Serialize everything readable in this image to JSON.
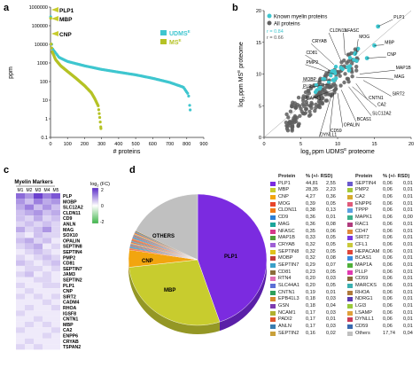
{
  "panel_labels": {
    "a": "a",
    "b": "b",
    "c": "c",
    "d": "d"
  },
  "panel_a": {
    "ylabel": "ppm",
    "xlabel": "# proteins",
    "legend": [
      "UDMS",
      "MS"
    ],
    "legend_superscript": "E",
    "y_ticks": [
      "1000000",
      "100000",
      "10000",
      "1000",
      "100",
      "10",
      "1",
      "0.1"
    ],
    "x_ticks": [
      "0",
      "100",
      "200",
      "300",
      "400",
      "500",
      "600",
      "700",
      "800",
      "900"
    ],
    "annotations": [
      "PLP1",
      "MBP",
      "CNP"
    ],
    "colors": {
      "udms": "#3ec6cf",
      "ms": "#b5c225"
    }
  },
  "panel_b": {
    "ylabel": "log",
    "ylabel_sub": "2",
    "ylabel_rest": "ppm MS",
    "ylabel_sup": "E",
    "ylabel_end": " proteome",
    "xlabel": "log",
    "xlabel_sub": "2",
    "xlabel_rest": "ppm UDMS",
    "xlabel_sup": "E",
    "xlabel_end": " proteome",
    "legend": [
      "Known myelin proteins",
      "All proteins"
    ],
    "r_labels": [
      "r =  0.84",
      "r =  0.66"
    ],
    "x_ticks": [
      "0",
      "5",
      "10",
      "15",
      "20"
    ],
    "y_ticks": [
      "0",
      "5",
      "10",
      "15",
      "20"
    ],
    "labels": [
      "PLP1",
      "MBP",
      "CNP",
      "MOG",
      "NFASC",
      "CLDN11",
      "CRYAB",
      "CD81",
      "PMP2",
      "MOBP",
      "PLP",
      "MAPK1",
      "MAP1B",
      "MAG",
      "CA2",
      "SLC12A2",
      "CNTN1",
      "SIRT2",
      "BCAS1",
      "OPALIN",
      "CD59",
      "DYNLL1"
    ]
  },
  "panel_c": {
    "title": "Myelin Markers",
    "columns": [
      "M1",
      "M2",
      "M3",
      "M4",
      "M5"
    ],
    "legend_title": "log",
    "legend_sub": "2",
    "legend_end": " (FC)",
    "legend_ticks": [
      "2",
      "0",
      "-2"
    ],
    "rows": [
      "PLP",
      "MOBP",
      "SLC12A2",
      "CLDN11",
      "CD9",
      "ANLN",
      "MAG",
      "SOX10",
      "OPALIN",
      "SEPTIN8",
      "SEPTIN4",
      "PMP2",
      "CD81",
      "SEPTIN7",
      "JAM3",
      "SEPTIN2",
      "PLP1",
      "CNP",
      "SIRT2",
      "CADM4",
      "RHOA",
      "IGSF8",
      "CNTN1",
      "MBP",
      "CA2",
      "ENPP6",
      "CRYAB",
      "TSPAN2"
    ],
    "values": [
      [
        0.7,
        0.5,
        0.9,
        0.6,
        0.8
      ],
      [
        0.5,
        0.3,
        0.6,
        0.4,
        0.5
      ],
      [
        0.4,
        0.6,
        0.3,
        0.5,
        0.3
      ],
      [
        0.3,
        0.4,
        0.5,
        0.3,
        0.4
      ],
      [
        0.3,
        0.2,
        0.4,
        0.2,
        0.3
      ],
      [
        0.2,
        0.3,
        0.2,
        0.3,
        0.2
      ],
      [
        0.4,
        0.2,
        0.3,
        0.5,
        0.2
      ],
      [
        0.2,
        0.1,
        0.3,
        0.2,
        0.2
      ],
      [
        0.3,
        0.4,
        0.2,
        0.3,
        0.1
      ],
      [
        0.2,
        0.3,
        0.4,
        0.1,
        0.2
      ],
      [
        0.1,
        0.2,
        0.3,
        0.2,
        0.1
      ],
      [
        0.2,
        0.1,
        0.2,
        0.3,
        0.2
      ],
      [
        0.3,
        0.2,
        0.1,
        0.2,
        0.3
      ],
      [
        0.1,
        0.2,
        0.2,
        0.1,
        0.2
      ],
      [
        0.2,
        0.3,
        0.1,
        0.2,
        0.1
      ],
      [
        0.1,
        0.1,
        0.2,
        0.2,
        0.1
      ],
      [
        0.2,
        0.1,
        0.1,
        0.2,
        0.2
      ],
      [
        0.1,
        0.2,
        0.1,
        0.1,
        0.1
      ],
      [
        0.2,
        0.1,
        0.2,
        0.1,
        0.2
      ],
      [
        0.1,
        0.1,
        0.1,
        0.2,
        0.1
      ],
      [
        0.1,
        0.2,
        0.1,
        0.1,
        0.2
      ],
      [
        0.2,
        0.1,
        0.1,
        0.1,
        0.1
      ],
      [
        0.1,
        0.1,
        0.2,
        0.1,
        0.1
      ],
      [
        0.1,
        0.2,
        0.1,
        0.2,
        0.1
      ],
      [
        0.2,
        0.1,
        0.1,
        0.1,
        0.2
      ],
      [
        0.1,
        0.1,
        0.1,
        0.2,
        0.1
      ],
      [
        0.1,
        0.2,
        0.1,
        0.1,
        0.1
      ],
      [
        0.2,
        0.1,
        0.2,
        0.1,
        0.1
      ]
    ]
  },
  "panel_d": {
    "pie_labels": [
      "OTHERS",
      "PLP1",
      "MBP",
      "CNP"
    ],
    "table_headers": [
      "Protein",
      "% (+/- RSD)"
    ],
    "table_left": [
      {
        "name": "PLP1",
        "v1": "44,81",
        "v2": "2,55",
        "color": "#7b2be0"
      },
      {
        "name": "MBP",
        "v1": "28,35",
        "v2": "2,23",
        "color": "#c8cc2e"
      },
      {
        "name": "CNP",
        "v1": "4,27",
        "v2": "0,36",
        "color": "#f2a50f"
      },
      {
        "name": "MOG",
        "v1": "0,39",
        "v2": "0,05",
        "color": "#e8442a"
      },
      {
        "name": "CLDN11",
        "v1": "0,38",
        "v2": "0,13",
        "color": "#f07a1a"
      },
      {
        "name": "CD9",
        "v1": "0,36",
        "v2": "0,01",
        "color": "#2b7fd6"
      },
      {
        "name": "MAG",
        "v1": "0,36",
        "v2": "0,08",
        "color": "#1ca69a"
      },
      {
        "name": "NFASC",
        "v1": "0,35",
        "v2": "0,06",
        "color": "#d6398a"
      },
      {
        "name": "MAP1B",
        "v1": "0,33",
        "v2": "0,05",
        "color": "#4f9e3a"
      },
      {
        "name": "CRYAB",
        "v1": "0,32",
        "v2": "0,05",
        "color": "#9e5fd6"
      },
      {
        "name": "SEPTIN8",
        "v1": "0,32",
        "v2": "0,05",
        "color": "#e0c21a"
      },
      {
        "name": "MOBP",
        "v1": "0,32",
        "v2": "0,08",
        "color": "#c13b3b"
      },
      {
        "name": "SEPTIN7",
        "v1": "0,29",
        "v2": "0,07",
        "color": "#3aa0c9"
      },
      {
        "name": "CD81",
        "v1": "0,23",
        "v2": "0,05",
        "color": "#8c6d3a"
      },
      {
        "name": "RTN4",
        "v1": "0,20",
        "v2": "0,03",
        "color": "#e06fb5"
      },
      {
        "name": "SLC44A1",
        "v1": "0,20",
        "v2": "0,05",
        "color": "#5b6fd6"
      },
      {
        "name": "CNTN1",
        "v1": "0,19",
        "v2": "0,01",
        "color": "#2ea05b"
      },
      {
        "name": "EPB41L3",
        "v1": "0,18",
        "v2": "0,03",
        "color": "#d68a2e"
      },
      {
        "name": "GSN",
        "v1": "0,18",
        "v2": "0,04",
        "color": "#7d3ab0"
      },
      {
        "name": "NCAM1",
        "v1": "0,17",
        "v2": "0,03",
        "color": "#b0b02e"
      },
      {
        "name": "PADI2",
        "v1": "0,17",
        "v2": "0,01",
        "color": "#e0562e"
      },
      {
        "name": "ANLN",
        "v1": "0,17",
        "v2": "0,03",
        "color": "#3a7db0"
      },
      {
        "name": "SEPTIN2",
        "v1": "0,16",
        "v2": "0,02",
        "color": "#c9a03a"
      }
    ],
    "table_right": [
      {
        "name": "SEPTIN4",
        "v1": "0,06",
        "v2": "0,01",
        "color": "#6a5acd"
      },
      {
        "name": "PMP2",
        "v1": "0,06",
        "v2": "0,01",
        "color": "#a3c93a"
      },
      {
        "name": "CA2",
        "v1": "0,06",
        "v2": "0,01",
        "color": "#d6ab2e"
      },
      {
        "name": "ENPP6",
        "v1": "0,06",
        "v2": "0,01",
        "color": "#e05a7a"
      },
      {
        "name": "TPPP",
        "v1": "0,06",
        "v2": "0,01",
        "color": "#5aa0e0"
      },
      {
        "name": "MAPK1",
        "v1": "0,06",
        "v2": "0,00",
        "color": "#3ab08a"
      },
      {
        "name": "RAC1",
        "v1": "0,06",
        "v2": "0,01",
        "color": "#b03a7d"
      },
      {
        "name": "CD47",
        "v1": "0,06",
        "v2": "0,01",
        "color": "#e08c3a"
      },
      {
        "name": "SIRT2",
        "v1": "0,06",
        "v2": "0,01",
        "color": "#7a3ae0"
      },
      {
        "name": "CFL1",
        "v1": "0,06",
        "v2": "0,01",
        "color": "#c9c93a"
      },
      {
        "name": "HEPACAM",
        "v1": "0,06",
        "v2": "0,01",
        "color": "#e0463a"
      },
      {
        "name": "BCAS1",
        "v1": "0,06",
        "v2": "0,01",
        "color": "#3a8ce0"
      },
      {
        "name": "MAP1A",
        "v1": "0,06",
        "v2": "0,01",
        "color": "#4fb03a"
      },
      {
        "name": "PLLP",
        "v1": "0,06",
        "v2": "0,01",
        "color": "#e03ab0"
      },
      {
        "name": "CD59",
        "v1": "0,06",
        "v2": "0,01",
        "color": "#8a6a3a"
      },
      {
        "name": "MARCKS",
        "v1": "0,06",
        "v2": "0,01",
        "color": "#3ab0b0"
      },
      {
        "name": "RHOA",
        "v1": "0,06",
        "v2": "0,01",
        "color": "#b07a3a"
      },
      {
        "name": "NDRG1",
        "v1": "0,06",
        "v2": "0,01",
        "color": "#5a3ab0"
      },
      {
        "name": "LGI3",
        "v1": "0,06",
        "v2": "0,01",
        "color": "#9ac93a"
      },
      {
        "name": "LSAMP",
        "v1": "0,06",
        "v2": "0,01",
        "color": "#e0a03a"
      },
      {
        "name": "DYNLL1",
        "v1": "0,06",
        "v2": "0,01",
        "color": "#c93a5a"
      },
      {
        "name": "CD59",
        "v1": "0,06",
        "v2": "0,01",
        "color": "#3a6ab0"
      },
      {
        "name": "Others",
        "v1": "17,74",
        "v2": "0,04",
        "color": "#c0c0c0"
      }
    ]
  },
  "chart_data": [
    {
      "type": "scatter",
      "panel": "a",
      "ylabel": "ppm",
      "xlabel": "# proteins",
      "ylim": [
        0.1,
        1000000
      ],
      "yscale": "log",
      "xlim": [
        0,
        900
      ],
      "series": [
        {
          "name": "UDMS",
          "points": [
            [
              1,
              300000
            ],
            [
              2,
              120000
            ],
            [
              3,
              20000
            ],
            [
              10,
              6000
            ],
            [
              50,
              2000
            ],
            [
              100,
              1200
            ],
            [
              200,
              700
            ],
            [
              300,
              450
            ],
            [
              400,
              320
            ],
            [
              500,
              230
            ],
            [
              600,
              150
            ],
            [
              700,
              90
            ],
            [
              780,
              50
            ],
            [
              810,
              20
            ],
            [
              820,
              3
            ]
          ]
        },
        {
          "name": "MS",
          "points": [
            [
              1,
              250000
            ],
            [
              2,
              100000
            ],
            [
              3,
              12000
            ],
            [
              10,
              4000
            ],
            [
              30,
              1500
            ],
            [
              60,
              700
            ],
            [
              100,
              350
            ],
            [
              150,
              150
            ],
            [
              200,
              60
            ],
            [
              240,
              25
            ],
            [
              260,
              12
            ],
            [
              280,
              5
            ],
            [
              290,
              1
            ],
            [
              296,
              0.3
            ]
          ]
        }
      ]
    },
    {
      "type": "scatter",
      "panel": "b",
      "xlim": [
        0,
        20
      ],
      "ylim": [
        0,
        20
      ],
      "series": [
        {
          "name": "Known myelin proteins"
        },
        {
          "name": "All proteins"
        }
      ],
      "annotations": [
        "r = 0.84",
        "r = 0.66"
      ]
    },
    {
      "type": "heatmap",
      "panel": "c",
      "title": "Myelin Markers",
      "range": [
        -2,
        2
      ]
    },
    {
      "type": "pie",
      "panel": "d",
      "slices": [
        {
          "label": "PLP1",
          "value": 44.81
        },
        {
          "label": "MBP",
          "value": 28.35
        },
        {
          "label": "CNP",
          "value": 4.27
        },
        {
          "label": "others small",
          "value": 4.83
        },
        {
          "label": "OTHERS",
          "value": 17.74
        }
      ]
    }
  ]
}
